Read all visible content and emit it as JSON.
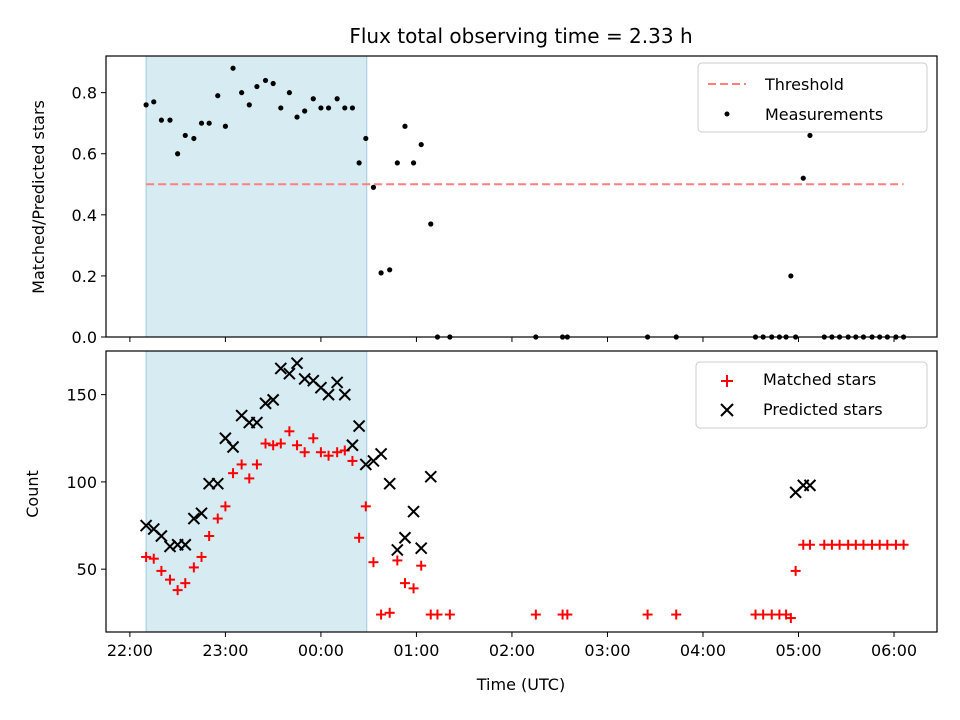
{
  "chart_data": [
    {
      "type": "scatter",
      "title": "Flux total observing time = 2.33 h",
      "xlabel": "",
      "ylabel": "Matched/Predicted stars",
      "ylim": [
        0,
        0.92
      ],
      "yticks": [
        0.0,
        0.2,
        0.4,
        0.6,
        0.8
      ],
      "ytick_labels": [
        "0.0",
        "0.2",
        "0.4",
        "0.6",
        "0.8"
      ],
      "xlim_hours": [
        21.75,
        30.45
      ],
      "highlight_span_hours": [
        22.17,
        24.48
      ],
      "legend": {
        "placement": "upper right",
        "entries": [
          "Threshold",
          "Measurements"
        ]
      },
      "series": [
        {
          "name": "Threshold",
          "kind": "line",
          "style": "dashed",
          "color": "#ff7f7f",
          "x_start_hours": 22.17,
          "x_end_hours": 30.1,
          "value": 0.5
        },
        {
          "name": "Measurements",
          "kind": "scatter",
          "color": "#000000",
          "x_hours": [
            22.17,
            22.25,
            22.33,
            22.42,
            22.5,
            22.58,
            22.67,
            22.75,
            22.83,
            22.92,
            23.0,
            23.08,
            23.17,
            23.25,
            23.33,
            23.42,
            23.5,
            23.58,
            23.67,
            23.75,
            23.83,
            23.92,
            24.0,
            24.08,
            24.17,
            24.25,
            24.33,
            24.4,
            24.47,
            24.55,
            24.63,
            24.72,
            24.8,
            24.88,
            24.97,
            25.05,
            25.15,
            25.22,
            25.35,
            26.25,
            26.53,
            26.58,
            27.42,
            27.72,
            28.55,
            28.63,
            28.72,
            28.8,
            28.87,
            28.92,
            28.97,
            29.05,
            29.12,
            29.27,
            29.35,
            29.43,
            29.52,
            29.6,
            29.68,
            29.77,
            29.85,
            29.93,
            30.02,
            30.1
          ],
          "values": [
            0.76,
            0.77,
            0.71,
            0.71,
            0.6,
            0.66,
            0.65,
            0.7,
            0.7,
            0.79,
            0.69,
            0.88,
            0.8,
            0.76,
            0.82,
            0.84,
            0.83,
            0.75,
            0.8,
            0.72,
            0.74,
            0.78,
            0.75,
            0.75,
            0.78,
            0.75,
            0.75,
            0.57,
            0.65,
            0.49,
            0.21,
            0.22,
            0.57,
            0.69,
            0.57,
            0.63,
            0.37,
            0.0,
            0.0,
            0.0,
            0.0,
            0.0,
            0.0,
            0.0,
            0.0,
            0.0,
            0.0,
            0.0,
            0.0,
            0.2,
            0.0,
            0.52,
            0.66,
            0.0,
            0.0,
            0.0,
            0.0,
            0.0,
            0.0,
            0.0,
            0.0,
            0.0,
            0.0,
            0.0
          ]
        }
      ]
    },
    {
      "type": "scatter",
      "xlabel": "Time (UTC)",
      "ylabel": "Count",
      "ylim": [
        14,
        175
      ],
      "yticks": [
        50,
        100,
        150
      ],
      "ytick_labels": [
        "50",
        "100",
        "150"
      ],
      "xlim_hours": [
        21.75,
        30.45
      ],
      "xticks_hours": [
        22,
        23,
        24,
        25,
        26,
        27,
        28,
        29,
        30
      ],
      "xtick_labels": [
        "22:00",
        "23:00",
        "00:00",
        "01:00",
        "02:00",
        "03:00",
        "04:00",
        "05:00",
        "06:00"
      ],
      "highlight_span_hours": [
        22.17,
        24.48
      ],
      "legend": {
        "placement": "upper right",
        "entries": [
          "Matched stars",
          "Predicted stars"
        ]
      },
      "series": [
        {
          "name": "Matched stars",
          "marker": "+",
          "color": "#ff0000",
          "x_hours": [
            22.17,
            22.25,
            22.33,
            22.42,
            22.5,
            22.58,
            22.67,
            22.75,
            22.83,
            22.92,
            23.0,
            23.08,
            23.17,
            23.25,
            23.33,
            23.42,
            23.5,
            23.58,
            23.67,
            23.75,
            23.83,
            23.92,
            24.0,
            24.08,
            24.17,
            24.25,
            24.33,
            24.4,
            24.47,
            24.55,
            24.63,
            24.72,
            24.8,
            24.88,
            24.97,
            25.05,
            25.15,
            25.22,
            25.35,
            26.25,
            26.53,
            26.58,
            27.42,
            27.72,
            28.55,
            28.63,
            28.72,
            28.8,
            28.87,
            28.92,
            28.97,
            29.05,
            29.12,
            29.27,
            29.35,
            29.43,
            29.52,
            29.6,
            29.68,
            29.77,
            29.85,
            29.93,
            30.02,
            30.1
          ],
          "values": [
            57,
            56,
            49,
            44,
            38,
            42,
            51,
            57,
            69,
            79,
            86,
            105,
            110,
            102,
            110,
            122,
            121,
            122,
            129,
            121,
            117,
            125,
            117,
            115,
            117,
            118,
            112,
            68,
            86,
            54,
            24,
            25,
            55,
            42,
            39,
            52,
            24,
            24,
            24,
            24,
            24,
            24,
            24,
            24,
            24,
            24,
            24,
            24,
            24,
            22,
            49,
            64,
            64,
            64,
            64,
            64,
            64,
            64,
            64,
            64,
            64,
            64,
            64,
            64
          ]
        },
        {
          "name": "Predicted stars",
          "marker": "x",
          "color": "#000000",
          "x_hours": [
            22.17,
            22.25,
            22.33,
            22.42,
            22.5,
            22.58,
            22.67,
            22.75,
            22.83,
            22.92,
            23.0,
            23.08,
            23.17,
            23.25,
            23.33,
            23.42,
            23.5,
            23.58,
            23.67,
            23.75,
            23.83,
            23.92,
            24.0,
            24.08,
            24.17,
            24.25,
            24.33,
            24.4,
            24.47,
            24.55,
            24.63,
            24.72,
            24.8,
            24.88,
            24.97,
            25.05,
            25.15,
            28.97,
            29.05,
            29.12
          ],
          "values": [
            75,
            73,
            69,
            63,
            64,
            64,
            79,
            82,
            99,
            99,
            125,
            120,
            138,
            134,
            134,
            145,
            147,
            165,
            162,
            168,
            159,
            158,
            154,
            150,
            157,
            150,
            121,
            132,
            110,
            112,
            116,
            99,
            61,
            68,
            83,
            62,
            103,
            94,
            98,
            98
          ]
        }
      ]
    }
  ]
}
